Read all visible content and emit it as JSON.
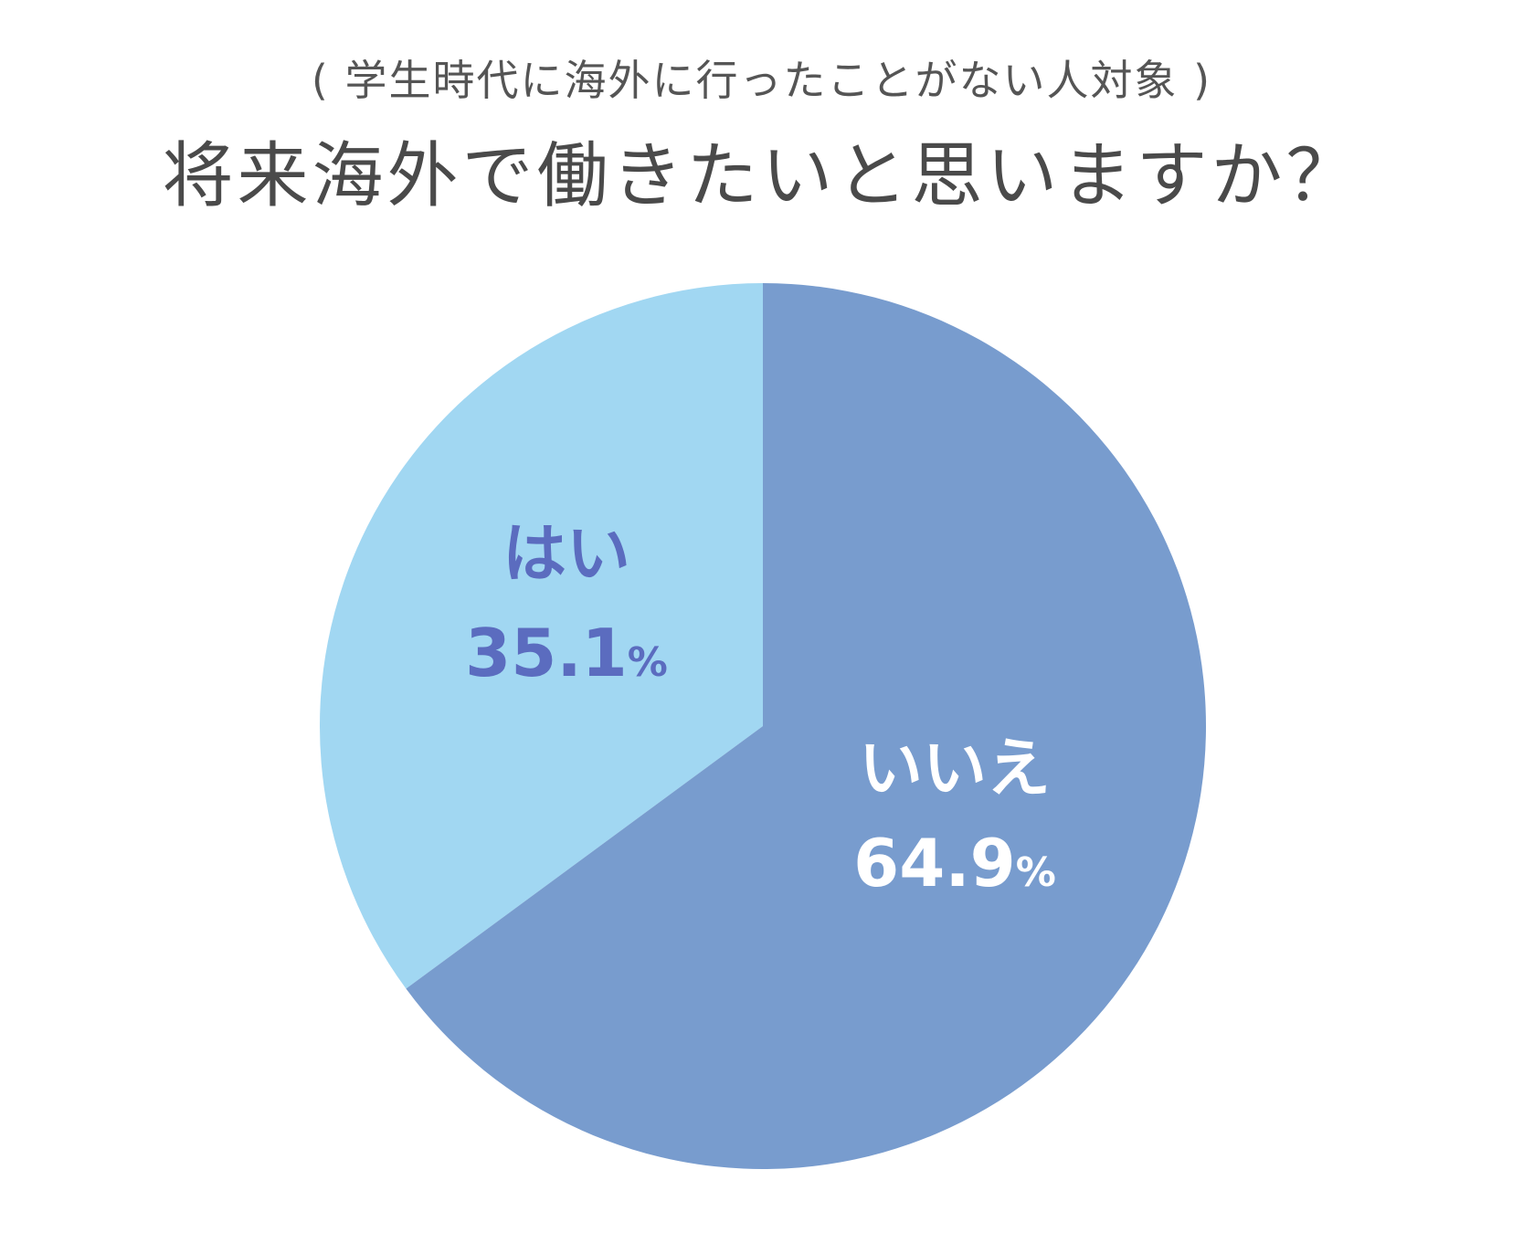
{
  "chart_data": {
    "type": "pie",
    "subtitle": "( 学生時代に海外に行ったことがない人対象 )",
    "title": "将来海外で働きたいと思いますか？",
    "slices": [
      {
        "label": "はい",
        "value": 35.1,
        "value_text": "35.1",
        "unit": "%",
        "color": "#a1d7f2",
        "label_color": "#5b6cbf"
      },
      {
        "label": "いいえ",
        "value": 64.9,
        "value_text": "64.9",
        "unit": "%",
        "color": "#789cce",
        "label_color": "#ffffff"
      }
    ],
    "start_angle": "12 o'clock",
    "direction": "counterclockwise for はい, clockwise for いいえ"
  }
}
